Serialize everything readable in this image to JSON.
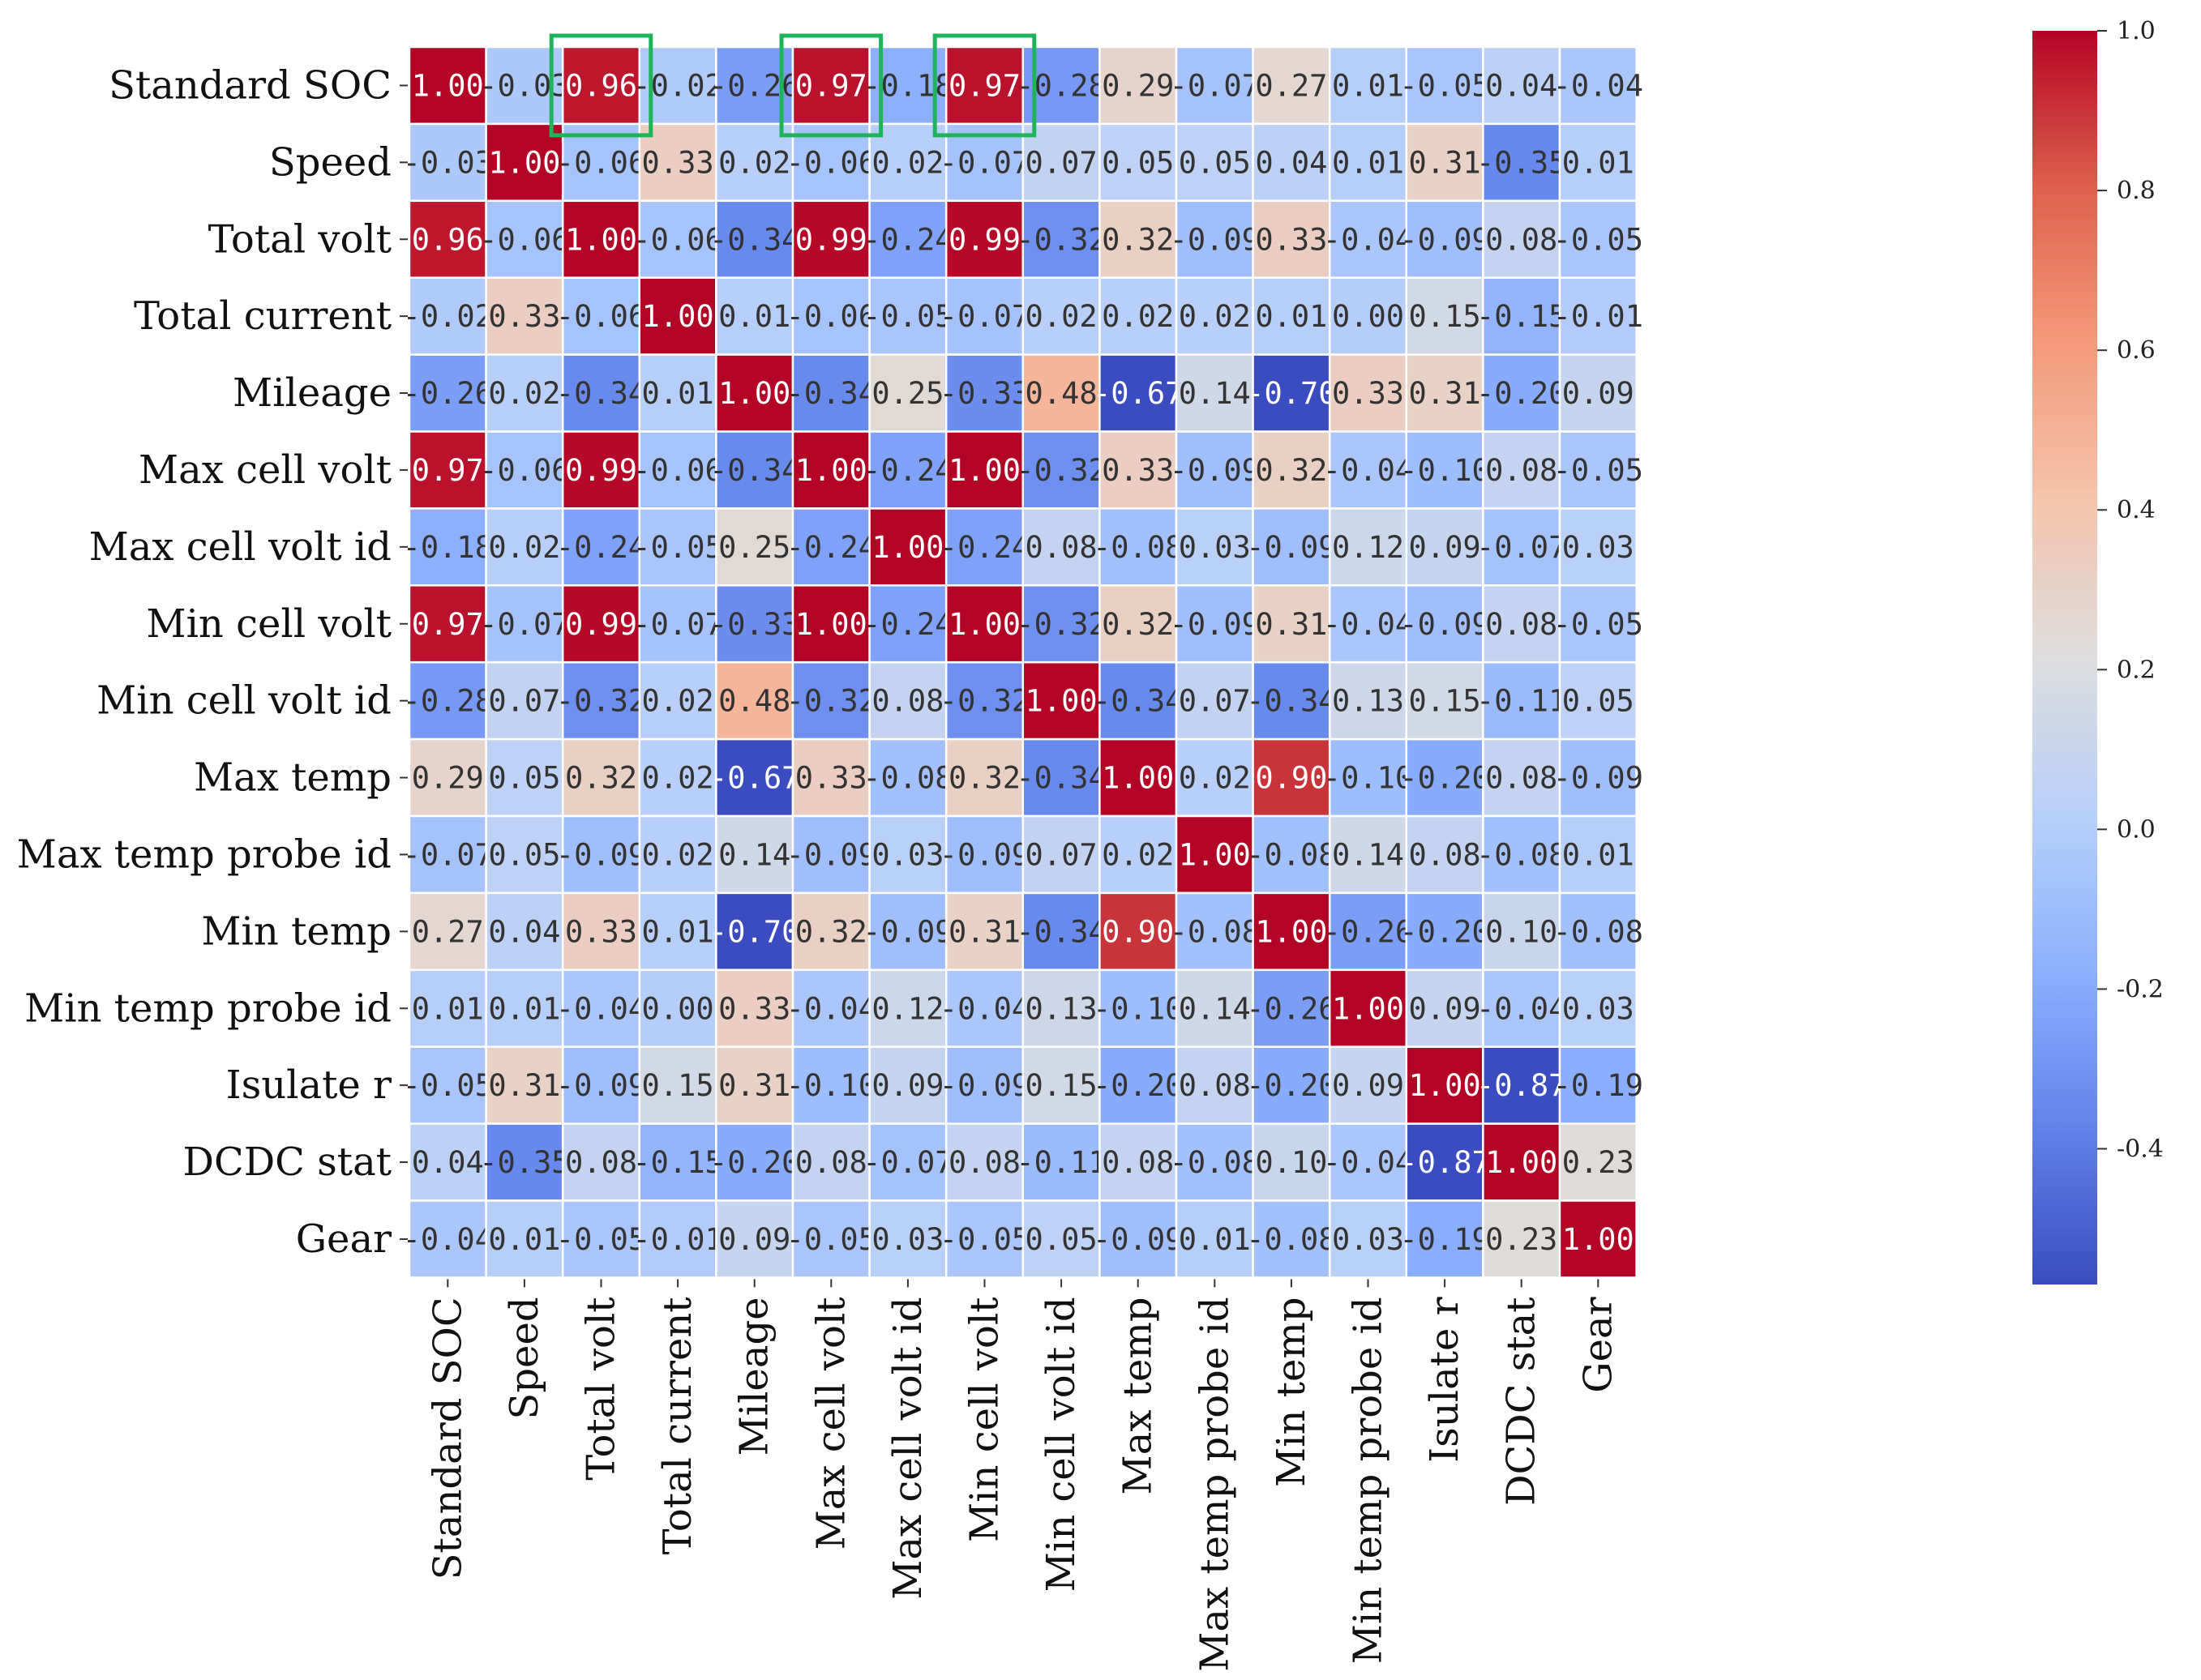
{
  "chart_data": {
    "type": "heatmap",
    "title": "",
    "xlabel": "",
    "ylabel": "",
    "labels": [
      "Standard SOC",
      "Speed",
      "Total volt",
      "Total current",
      "Mileage",
      "Max cell volt",
      "Max cell volt id",
      "Min cell volt",
      "Min cell volt id",
      "Max temp",
      "Max temp probe id",
      "Min temp",
      "Min temp probe id",
      "Isulate r",
      "DCDC stat",
      "Gear"
    ],
    "values": [
      [
        1.0,
        -0.03,
        0.96,
        -0.02,
        -0.26,
        0.97,
        -0.18,
        0.97,
        -0.28,
        0.29,
        -0.07,
        0.27,
        0.01,
        -0.05,
        0.04,
        -0.04
      ],
      [
        -0.03,
        1.0,
        -0.06,
        0.33,
        0.02,
        -0.06,
        0.02,
        -0.07,
        0.07,
        0.05,
        0.05,
        0.04,
        0.01,
        0.31,
        -0.35,
        0.01
      ],
      [
        0.96,
        -0.06,
        1.0,
        -0.06,
        -0.34,
        0.99,
        -0.24,
        0.99,
        -0.32,
        0.32,
        -0.09,
        0.33,
        -0.04,
        -0.09,
        0.08,
        -0.05
      ],
      [
        -0.02,
        0.33,
        -0.06,
        1.0,
        0.01,
        -0.06,
        -0.05,
        -0.07,
        0.02,
        0.02,
        0.02,
        0.01,
        0.0,
        0.15,
        -0.15,
        -0.01
      ],
      [
        -0.26,
        0.02,
        -0.34,
        0.01,
        1.0,
        -0.34,
        0.25,
        -0.33,
        0.48,
        -0.67,
        0.14,
        -0.7,
        0.33,
        0.31,
        -0.2,
        0.09
      ],
      [
        0.97,
        -0.06,
        0.99,
        -0.06,
        -0.34,
        1.0,
        -0.24,
        1.0,
        -0.32,
        0.33,
        -0.09,
        0.32,
        -0.04,
        -0.1,
        0.08,
        -0.05
      ],
      [
        -0.18,
        0.02,
        -0.24,
        -0.05,
        0.25,
        -0.24,
        1.0,
        -0.24,
        0.08,
        -0.08,
        0.03,
        -0.09,
        0.12,
        0.09,
        -0.07,
        0.03
      ],
      [
        0.97,
        -0.07,
        0.99,
        -0.07,
        -0.33,
        1.0,
        -0.24,
        1.0,
        -0.32,
        0.32,
        -0.09,
        0.31,
        -0.04,
        -0.09,
        0.08,
        -0.05
      ],
      [
        -0.28,
        0.07,
        -0.32,
        0.02,
        0.48,
        -0.32,
        0.08,
        -0.32,
        1.0,
        -0.34,
        0.07,
        -0.34,
        0.13,
        0.15,
        -0.11,
        0.05
      ],
      [
        0.29,
        0.05,
        0.32,
        0.02,
        -0.67,
        0.33,
        -0.08,
        0.32,
        -0.34,
        1.0,
        0.02,
        0.9,
        -0.1,
        -0.2,
        0.08,
        -0.09
      ],
      [
        -0.07,
        0.05,
        -0.09,
        0.02,
        0.14,
        -0.09,
        0.03,
        -0.09,
        0.07,
        0.02,
        1.0,
        -0.08,
        0.14,
        0.08,
        -0.08,
        0.01
      ],
      [
        0.27,
        0.04,
        0.33,
        0.01,
        -0.7,
        0.32,
        -0.09,
        0.31,
        -0.34,
        0.9,
        -0.08,
        1.0,
        -0.26,
        -0.2,
        0.1,
        -0.08
      ],
      [
        0.01,
        0.01,
        -0.04,
        0.0,
        0.33,
        -0.04,
        0.12,
        -0.04,
        0.13,
        -0.1,
        0.14,
        -0.26,
        1.0,
        0.09,
        -0.04,
        0.03
      ],
      [
        -0.05,
        0.31,
        -0.09,
        0.15,
        0.31,
        -0.1,
        0.09,
        -0.09,
        0.15,
        -0.2,
        0.08,
        -0.2,
        0.09,
        1.0,
        -0.87,
        -0.19
      ],
      [
        0.04,
        -0.35,
        0.08,
        -0.15,
        -0.2,
        0.08,
        -0.07,
        0.08,
        -0.11,
        0.08,
        -0.08,
        0.1,
        -0.04,
        -0.87,
        1.0,
        0.23
      ],
      [
        -0.04,
        0.01,
        -0.05,
        -0.01,
        0.09,
        -0.05,
        0.03,
        -0.05,
        0.05,
        -0.09,
        0.01,
        -0.08,
        0.03,
        -0.19,
        0.23,
        1.0
      ]
    ],
    "colormap": "coolwarm",
    "vmin": -0.57,
    "vmax": 1.0,
    "colorbar_ticks": [
      1.0,
      0.8,
      0.6,
      0.4,
      0.2,
      0.0,
      -0.2,
      -0.4
    ],
    "colorbar_tick_labels": [
      "1.0",
      "0.8",
      "0.6",
      "0.4",
      "0.2",
      "0.0",
      "-0.2",
      "-0.4"
    ],
    "highlighted_cells": [
      {
        "row": "Standard SOC",
        "col": "Total volt"
      },
      {
        "row": "Standard SOC",
        "col": "Max cell volt"
      },
      {
        "row": "Standard SOC",
        "col": "Min cell volt"
      }
    ],
    "highlight_color": "#1fb35a",
    "grid": true
  }
}
